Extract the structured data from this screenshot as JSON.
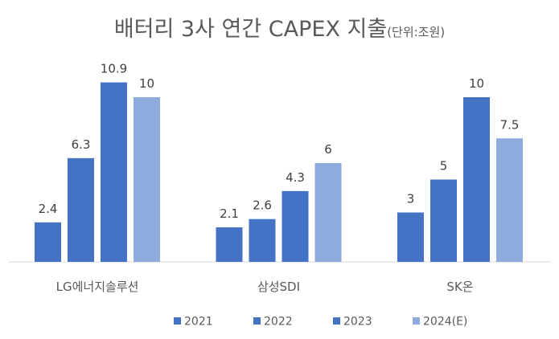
{
  "chart_data": {
    "type": "bar",
    "title": "배터리 3사 연간 CAPEX  지출",
    "title_unit": "(단위:조원)",
    "categories": [
      "LG에너지솔루션",
      "삼성SDI",
      "SK온"
    ],
    "series": [
      {
        "name": "2021",
        "values": [
          2.4,
          2.1,
          3
        ],
        "color": "#4472C4"
      },
      {
        "name": "2022",
        "values": [
          6.3,
          2.6,
          5
        ],
        "color": "#4472C4"
      },
      {
        "name": "2023",
        "values": [
          10.9,
          4.3,
          10
        ],
        "color": "#4472C4"
      },
      {
        "name": "2024(E)",
        "values": [
          10,
          6,
          7.5
        ],
        "color": "#8FAADC"
      }
    ],
    "ylim": [
      0,
      11
    ],
    "grid": false,
    "legend": "bottom",
    "data_labels": true
  }
}
